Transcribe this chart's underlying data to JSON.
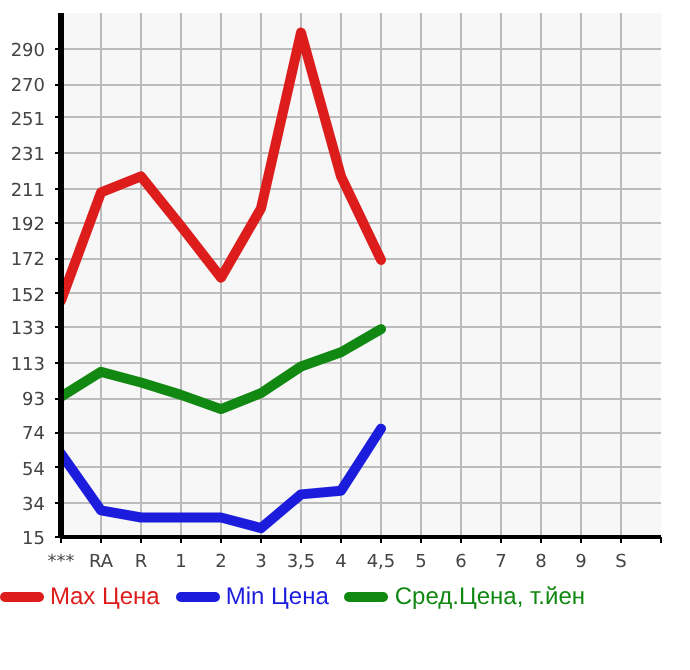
{
  "chart_data": {
    "type": "line",
    "categories": [
      "***",
      "RA",
      "R",
      "1",
      "2",
      "3",
      "3,5",
      "4",
      "4,5",
      "5",
      "6",
      "7",
      "8",
      "9",
      "S"
    ],
    "series": [
      {
        "name": "Max Цена",
        "color": "#dd1c1c",
        "values": [
          148,
          209,
          218,
          190,
          161,
          200,
          299,
          218,
          171,
          null,
          null,
          null,
          null,
          null,
          null
        ]
      },
      {
        "name": "Min Цена",
        "color": "#1c1cdd",
        "values": [
          62,
          30,
          26,
          26,
          26,
          20,
          39,
          41,
          76,
          null,
          null,
          null,
          null,
          null,
          null
        ]
      },
      {
        "name": "Сред.Цена, т.йен",
        "color": "#118811",
        "values": [
          94,
          108,
          102,
          95,
          87,
          96,
          111,
          119,
          132,
          null,
          null,
          null,
          null,
          null,
          null
        ]
      }
    ],
    "ylim": [
      15,
      310
    ],
    "yticks": [
      15,
      34,
      54,
      74,
      93,
      113,
      133,
      152,
      172,
      192,
      211,
      231,
      251,
      270,
      290
    ],
    "grid": true,
    "legend": "bottom",
    "line_style": "solid"
  }
}
